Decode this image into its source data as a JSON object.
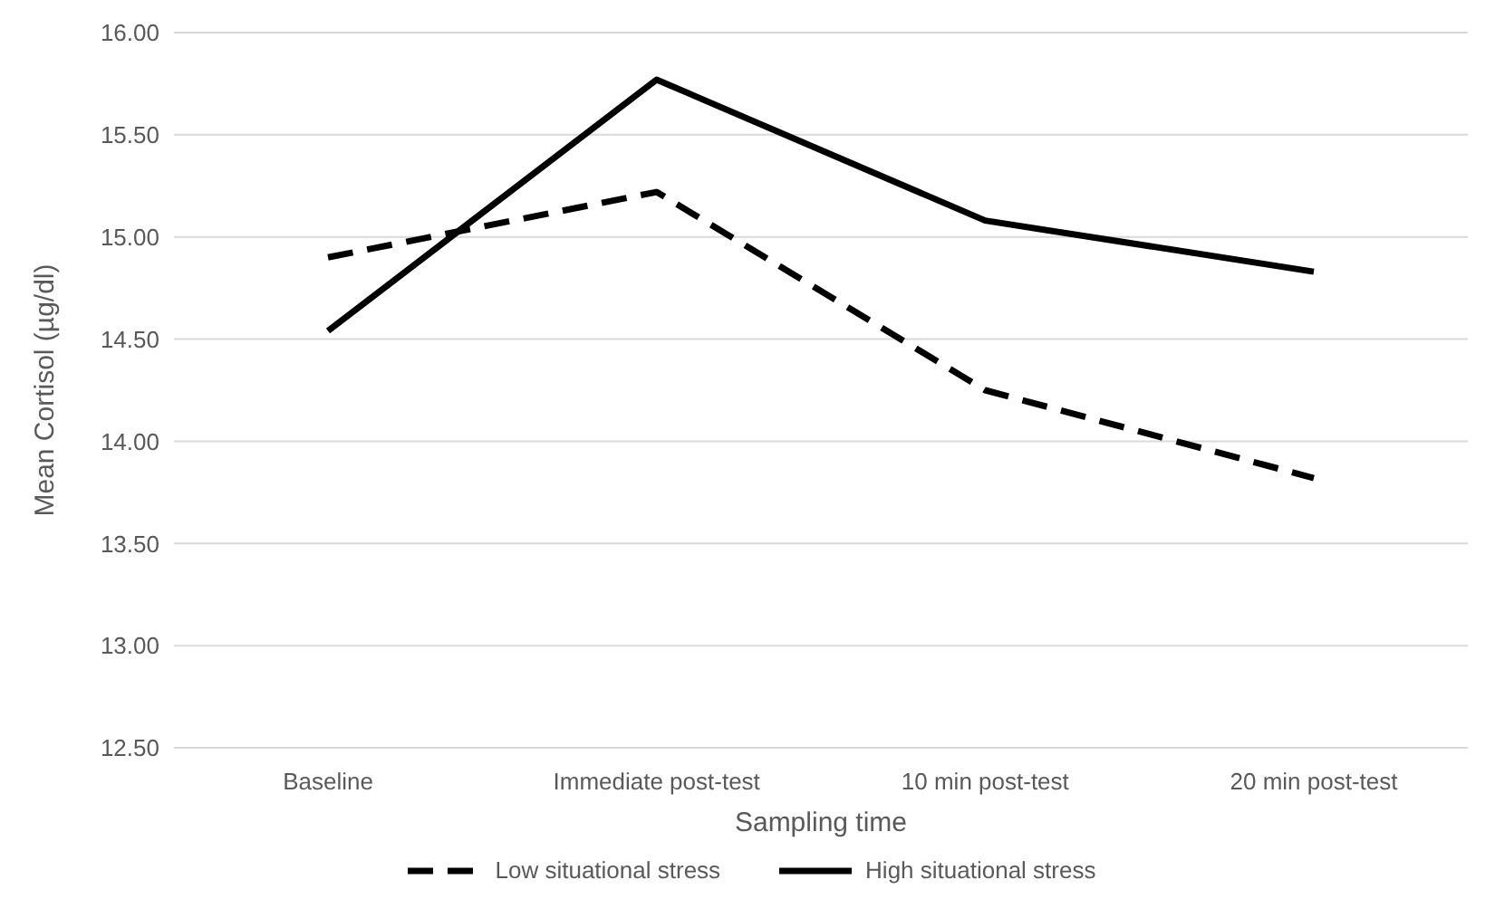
{
  "chart_data": {
    "type": "line",
    "xlabel": "Sampling time",
    "ylabel": "Mean Cortisol (µg/dl)",
    "categories": [
      "Baseline",
      "Immediate post-test",
      "10 min post-test",
      "20 min post-test"
    ],
    "series": [
      {
        "name": "Low situational stress",
        "color": "#000000",
        "values": [
          14.9,
          15.22,
          14.25,
          13.82
        ],
        "line_style": "dashed"
      },
      {
        "name": "High situational stress",
        "color": "#000000",
        "values": [
          14.54,
          15.77,
          15.08,
          14.83
        ],
        "line_style": "solid"
      }
    ],
    "ylim": [
      12.5,
      16
    ],
    "yticks": [
      {
        "value": 12.5,
        "label": "12.50"
      },
      {
        "value": 13,
        "label": "13.00"
      },
      {
        "value": 13.5,
        "label": "13.50"
      },
      {
        "value": 14,
        "label": "14.00"
      },
      {
        "value": 14.5,
        "label": "14.50"
      },
      {
        "value": 15,
        "label": "15.00"
      },
      {
        "value": 15.5,
        "label": "15.50"
      },
      {
        "value": 16,
        "label": "16.00"
      }
    ],
    "grid": "y",
    "legend": "bottom",
    "marker": "none"
  }
}
